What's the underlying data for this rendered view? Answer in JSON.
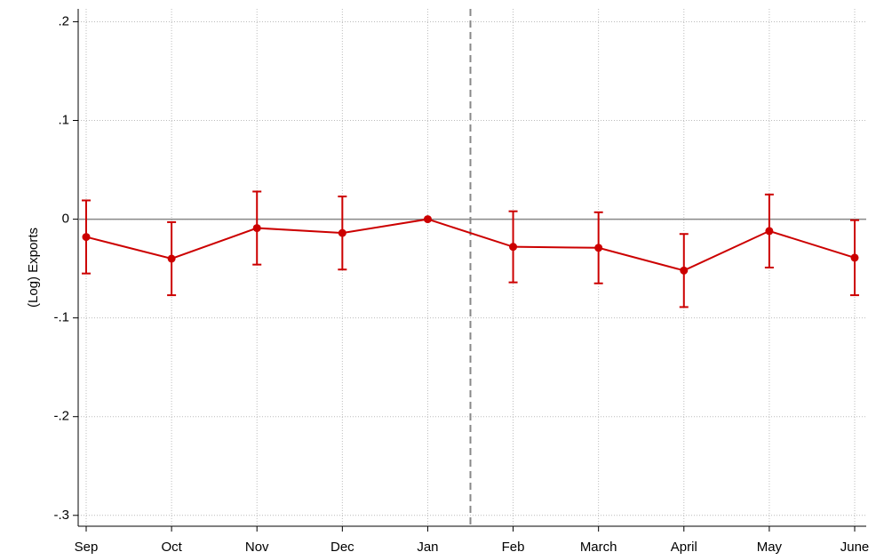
{
  "chart_data": {
    "type": "line",
    "y_label": "(Log) Exports",
    "categories": [
      "Sep",
      "Oct",
      "Nov",
      "Dec",
      "Jan",
      "Feb",
      "March",
      "April",
      "May",
      "June"
    ],
    "series": [
      {
        "color": "#cc0000",
        "values": [
          -0.018,
          -0.04,
          -0.009,
          -0.014,
          0,
          -0.028,
          -0.029,
          -0.052,
          -0.012,
          -0.039
        ],
        "errors": [
          0.037,
          0.037,
          0.037,
          0.037,
          0,
          0.036,
          0.036,
          0.037,
          0.037,
          0.038
        ]
      }
    ],
    "ylim": [
      -0.311,
      0.213
    ],
    "yticks": [
      {
        "value": 0.2,
        "label": ".2"
      },
      {
        "value": 0.1,
        "label": ".1"
      },
      0,
      {
        "value": -0.1,
        "label": "-.1"
      },
      {
        "value": -0.2,
        "label": "-.2"
      },
      {
        "value": -0.3,
        "label": "-.3"
      }
    ],
    "grid": true,
    "hline": 0,
    "vline_at": 4.5
  }
}
